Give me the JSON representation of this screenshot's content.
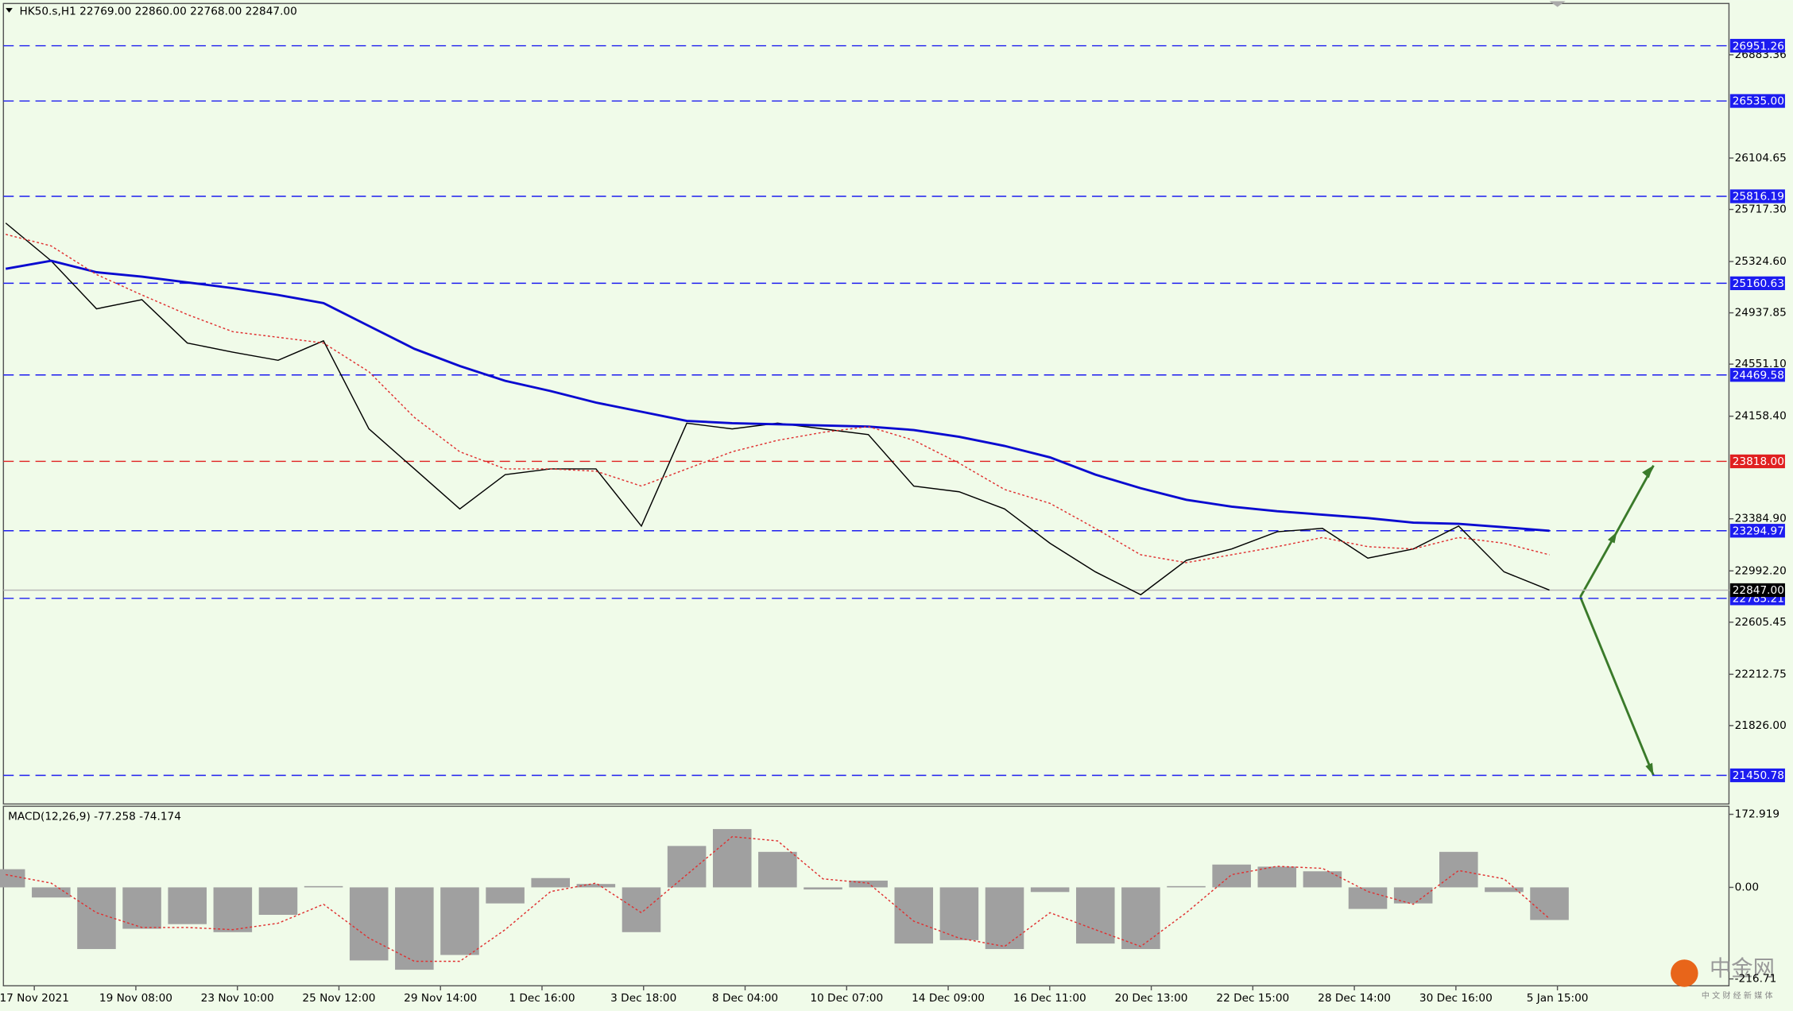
{
  "chart_data": [
    {
      "type": "line",
      "title": "HK50.s,H1  22769.00 22860.00 22768.00 22847.00",
      "ylim": [
        21235,
        27270
      ],
      "yticks": [
        26883.36,
        26104.65,
        {
          "value": 25717.3,
          "label": "25717.30"
        },
        {
          "value": 25324.6,
          "label": "25324.60"
        },
        24937.85,
        {
          "value": 24551.1,
          "label": "24551.10"
        },
        {
          "value": 24158.4,
          "label": "24158.40"
        },
        {
          "value": 23384.9,
          "label": "23384.90"
        },
        {
          "value": 22992.2,
          "label": "22992.20"
        },
        22605.45,
        22212.75,
        {
          "value": 21826,
          "label": "21826.00"
        }
      ],
      "xtick_labels": [
        "17 Nov 2021",
        "19 Nov 08:00",
        "23 Nov 10:00",
        "25 Nov 12:00",
        "29 Nov 14:00",
        "1 Dec 16:00",
        "3 Dec 18:00",
        "8 Dec 04:00",
        "10 Dec 07:00",
        "14 Dec 09:00",
        "16 Dec 11:00",
        "20 Dec 13:00",
        "22 Dec 15:00",
        "28 Dec 14:00",
        "30 Dec 16:00",
        "5 Jan 15:00"
      ],
      "levels": [
        {
          "value": 26951.26,
          "color": "#1c1cf0"
        },
        {
          "value": 26535,
          "label": "26535.00",
          "color": "#1c1cf0"
        },
        {
          "value": 25816.19,
          "color": "#1c1cf0"
        },
        {
          "value": 25160.63,
          "color": "#1c1cf0"
        },
        {
          "value": 24469.58,
          "color": "#1c1cf0"
        },
        {
          "value": 23818,
          "label": "23818.00",
          "color": "#e02020"
        },
        {
          "value": 23294.97,
          "color": "#1c1cf0"
        },
        {
          "value": 22785.21,
          "color": "#1c1cf0"
        },
        {
          "value": 21450.78,
          "color": "#1c1cf0"
        }
      ],
      "current": {
        "value": 22847,
        "label": "22847.00",
        "color": "#000000"
      },
      "series": [
        {
          "color": "#000000",
          "values": [
            25615,
            25330,
            24968,
            25037,
            24710,
            24641,
            24580,
            24727,
            24063,
            23761,
            23459,
            23718,
            23761,
            23761,
            23330,
            24106,
            24063,
            24106,
            24063,
            24020,
            23632,
            23589,
            23459,
            23201,
            22985,
            22813,
            23071,
            23158,
            23287,
            23313,
            23089,
            23158,
            23330,
            22985,
            22847
          ]
        },
        {
          "color": "#0a0ad0",
          "values": [
            25270,
            25330,
            25244,
            25210,
            25167,
            25124,
            25072,
            25011,
            24839,
            24666,
            24537,
            24425,
            24348,
            24261,
            24192,
            24123,
            24106,
            24097,
            24089,
            24080,
            24054,
            24003,
            23934,
            23848,
            23718,
            23615,
            23528,
            23477,
            23442,
            23416,
            23390,
            23356,
            23347,
            23321,
            23295
          ]
        },
        {
          "color": "#e03030",
          "values": [
            25529,
            25442,
            25227,
            25072,
            24925,
            24796,
            24753,
            24710,
            24494,
            24149,
            23890,
            23761,
            23761,
            23744,
            23632,
            23761,
            23890,
            23977,
            24037,
            24080,
            23977,
            23804,
            23606,
            23502,
            23313,
            23114,
            23054,
            23114,
            23175,
            23244,
            23175,
            23158,
            23244,
            23201,
            23114
          ]
        }
      ],
      "watermark": "中金网",
      "watermark_sub": "中 文 财 经 新 媒 体"
    },
    {
      "type": "macd",
      "title": "MACD(12,26,9) -77.258 -74.174",
      "ylim": [
        -233,
        192
      ],
      "yticks": [
        172.919,
        {
          "value": 0,
          "label": "0.00"
        },
        -216.71
      ],
      "series": [
        {
          "color": "#a0a0a0",
          "values": [
            43,
            -24,
            -146,
            -98,
            -87,
            -106,
            -65,
            3,
            -173,
            -195,
            -160,
            -38,
            22,
            8,
            -106,
            98,
            138,
            84,
            -5,
            16,
            -133,
            -125,
            -146,
            -11,
            -133,
            -146,
            3,
            54,
            49,
            38,
            -51,
            -38,
            84,
            -11,
            -77.258
          ]
        },
        {
          "color": "#e03030",
          "values": [
            30,
            10,
            -60,
            -95,
            -95,
            -100,
            -85,
            -40,
            -120,
            -175,
            -175,
            -100,
            -10,
            10,
            -60,
            30,
            120,
            110,
            20,
            10,
            -80,
            -120,
            -140,
            -60,
            -100,
            -140,
            -60,
            30,
            50,
            45,
            -10,
            -40,
            40,
            20,
            -74.174
          ]
        }
      ]
    }
  ]
}
